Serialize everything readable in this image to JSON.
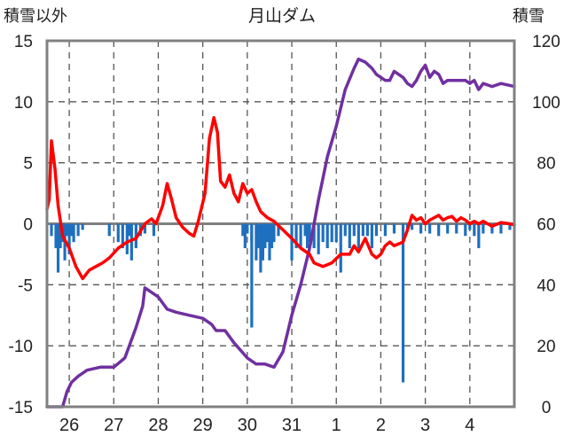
{
  "chart_data": {
    "type": "line",
    "title": "月山ダム",
    "y_left_label": "積雪以外",
    "y_right_label": "積雪",
    "ylim_left": [
      -15,
      15
    ],
    "yticks_left": [
      "15",
      "10",
      "5",
      "0",
      "-5",
      "-10",
      "-15"
    ],
    "ylim_right": [
      0,
      120
    ],
    "yticks_right": [
      "120",
      "100",
      "80",
      "60",
      "40",
      "20",
      "0"
    ],
    "x_categories": [
      "26",
      "27",
      "28",
      "29",
      "30",
      "31",
      "1",
      "2",
      "3",
      "4"
    ],
    "xlim_days": [
      0,
      10.5
    ],
    "grid": true,
    "colors": {
      "temperature": "#ff0000",
      "snow_depth": "#7030a0",
      "precipitation": "#1f6fbf",
      "axis": "#808080",
      "grid": "#555555"
    },
    "series": [
      {
        "axis": "left",
        "style": "line",
        "values_xy": [
          [
            0.0,
            1.2
          ],
          [
            0.05,
            2.0
          ],
          [
            0.1,
            6.8
          ],
          [
            0.18,
            4.5
          ],
          [
            0.25,
            1.5
          ],
          [
            0.35,
            -1.0
          ],
          [
            0.5,
            -2.0
          ],
          [
            0.65,
            -3.5
          ],
          [
            0.8,
            -4.5
          ],
          [
            0.95,
            -3.8
          ],
          [
            1.1,
            -3.5
          ],
          [
            1.25,
            -3.2
          ],
          [
            1.4,
            -2.8
          ],
          [
            1.6,
            -2.0
          ],
          [
            1.8,
            -1.5
          ],
          [
            2.0,
            -1.2
          ],
          [
            2.2,
            0.0
          ],
          [
            2.35,
            0.4
          ],
          [
            2.45,
            0.0
          ],
          [
            2.6,
            1.5
          ],
          [
            2.7,
            3.3
          ],
          [
            2.8,
            2.0
          ],
          [
            2.9,
            0.5
          ],
          [
            3.05,
            -0.3
          ],
          [
            3.2,
            -0.8
          ],
          [
            3.3,
            -1.0
          ],
          [
            3.4,
            0.2
          ],
          [
            3.55,
            2.5
          ],
          [
            3.65,
            7.0
          ],
          [
            3.75,
            8.7
          ],
          [
            3.83,
            7.5
          ],
          [
            3.9,
            3.5
          ],
          [
            4.0,
            3.0
          ],
          [
            4.1,
            4.0
          ],
          [
            4.2,
            2.5
          ],
          [
            4.3,
            1.8
          ],
          [
            4.4,
            3.3
          ],
          [
            4.5,
            2.5
          ],
          [
            4.6,
            2.8
          ],
          [
            4.7,
            1.8
          ],
          [
            4.8,
            1.0
          ],
          [
            4.95,
            0.5
          ],
          [
            5.1,
            0.2
          ],
          [
            5.3,
            -0.5
          ],
          [
            5.5,
            -1.2
          ],
          [
            5.7,
            -2.0
          ],
          [
            5.9,
            -2.5
          ],
          [
            6.0,
            -3.2
          ],
          [
            6.2,
            -3.5
          ],
          [
            6.4,
            -3.2
          ],
          [
            6.6,
            -2.5
          ],
          [
            6.8,
            -2.5
          ],
          [
            6.9,
            -1.8
          ],
          [
            7.0,
            -2.3
          ],
          [
            7.15,
            -1.2
          ],
          [
            7.3,
            -2.5
          ],
          [
            7.4,
            -2.8
          ],
          [
            7.5,
            -2.5
          ],
          [
            7.6,
            -1.8
          ],
          [
            7.7,
            -1.5
          ],
          [
            7.8,
            -1.8
          ],
          [
            8.0,
            -1.5
          ],
          [
            8.1,
            -0.5
          ],
          [
            8.2,
            0.7
          ],
          [
            8.3,
            0.3
          ],
          [
            8.4,
            0.5
          ],
          [
            8.5,
            0.0
          ],
          [
            8.6,
            0.3
          ],
          [
            8.7,
            0.5
          ],
          [
            8.8,
            0.7
          ],
          [
            8.9,
            0.3
          ],
          [
            9.0,
            0.5
          ],
          [
            9.1,
            0.6
          ],
          [
            9.2,
            0.2
          ],
          [
            9.3,
            0.5
          ],
          [
            9.4,
            0.3
          ],
          [
            9.5,
            0.0
          ],
          [
            9.6,
            0.2
          ],
          [
            9.7,
            0.0
          ],
          [
            9.8,
            0.2
          ],
          [
            10.0,
            -0.2
          ],
          [
            10.2,
            0.1
          ],
          [
            10.4,
            0.0
          ],
          [
            10.5,
            -0.1
          ]
        ]
      },
      {
        "axis": "right",
        "style": "line",
        "values_xy": [
          [
            0.0,
            0
          ],
          [
            0.35,
            0
          ],
          [
            0.45,
            5
          ],
          [
            0.55,
            8
          ],
          [
            0.7,
            10
          ],
          [
            0.9,
            12
          ],
          [
            1.2,
            13
          ],
          [
            1.5,
            13
          ],
          [
            1.75,
            16
          ],
          [
            2.0,
            26
          ],
          [
            2.15,
            33
          ],
          [
            2.2,
            39
          ],
          [
            2.3,
            38
          ],
          [
            2.5,
            36
          ],
          [
            2.7,
            32
          ],
          [
            2.9,
            31
          ],
          [
            3.2,
            30
          ],
          [
            3.5,
            29
          ],
          [
            3.7,
            27
          ],
          [
            3.8,
            25
          ],
          [
            4.0,
            25
          ],
          [
            4.2,
            21
          ],
          [
            4.5,
            16
          ],
          [
            4.7,
            14
          ],
          [
            4.9,
            14
          ],
          [
            5.1,
            13
          ],
          [
            5.3,
            18
          ],
          [
            5.5,
            30
          ],
          [
            5.7,
            40
          ],
          [
            5.9,
            52
          ],
          [
            6.1,
            68
          ],
          [
            6.3,
            82
          ],
          [
            6.5,
            92
          ],
          [
            6.7,
            104
          ],
          [
            6.9,
            111
          ],
          [
            7.0,
            114
          ],
          [
            7.15,
            113
          ],
          [
            7.3,
            111
          ],
          [
            7.4,
            109
          ],
          [
            7.5,
            108
          ],
          [
            7.6,
            107
          ],
          [
            7.7,
            107
          ],
          [
            7.8,
            110
          ],
          [
            7.9,
            109
          ],
          [
            8.0,
            108
          ],
          [
            8.1,
            106
          ],
          [
            8.2,
            105
          ],
          [
            8.3,
            107
          ],
          [
            8.4,
            110
          ],
          [
            8.5,
            112
          ],
          [
            8.6,
            108
          ],
          [
            8.7,
            110
          ],
          [
            8.8,
            109
          ],
          [
            8.9,
            106
          ],
          [
            9.0,
            107
          ],
          [
            9.1,
            107
          ],
          [
            9.2,
            107
          ],
          [
            9.4,
            107
          ],
          [
            9.5,
            106
          ],
          [
            9.6,
            107
          ],
          [
            9.7,
            104
          ],
          [
            9.8,
            106
          ],
          [
            10.0,
            105
          ],
          [
            10.2,
            106
          ],
          [
            10.5,
            105
          ]
        ]
      },
      {
        "axis": "left",
        "style": "bar",
        "values_xy": [
          [
            0.1,
            -1.0
          ],
          [
            0.2,
            -2.0
          ],
          [
            0.25,
            -4.0
          ],
          [
            0.3,
            -2.0
          ],
          [
            0.35,
            -1.5
          ],
          [
            0.4,
            -3.0
          ],
          [
            0.45,
            -1.0
          ],
          [
            0.5,
            -2.5
          ],
          [
            0.55,
            -1.0
          ],
          [
            0.6,
            -1.5
          ],
          [
            0.7,
            -1.0
          ],
          [
            0.8,
            -0.5
          ],
          [
            1.4,
            -1.0
          ],
          [
            1.6,
            -1.5
          ],
          [
            1.7,
            -2.0
          ],
          [
            1.8,
            -2.5
          ],
          [
            1.85,
            -1.0
          ],
          [
            1.9,
            -3.0
          ],
          [
            2.0,
            -2.0
          ],
          [
            2.1,
            -1.0
          ],
          [
            2.2,
            -0.8
          ],
          [
            2.4,
            -1.0
          ],
          [
            4.4,
            -1.0
          ],
          [
            4.45,
            -2.0
          ],
          [
            4.5,
            -0.8
          ],
          [
            4.6,
            -1.5
          ],
          [
            4.7,
            -3.0
          ],
          [
            4.75,
            -2.0
          ],
          [
            4.8,
            -4.0
          ],
          [
            4.85,
            -3.0
          ],
          [
            4.9,
            -2.0
          ],
          [
            4.95,
            -1.5
          ],
          [
            5.0,
            -3.0
          ],
          [
            5.05,
            -2.0
          ],
          [
            5.1,
            -1.5
          ],
          [
            5.2,
            -1.0
          ],
          [
            4.6,
            -8.5
          ],
          [
            5.5,
            -3.0
          ],
          [
            5.6,
            -2.0
          ],
          [
            5.7,
            -2.0
          ],
          [
            5.8,
            -1.0
          ],
          [
            5.85,
            -2.0
          ],
          [
            5.9,
            -1.5
          ],
          [
            6.0,
            -2.0
          ],
          [
            6.1,
            -2.5
          ],
          [
            6.2,
            -1.5
          ],
          [
            6.3,
            -2.0
          ],
          [
            6.4,
            -1.5
          ],
          [
            6.5,
            -1.5
          ],
          [
            6.6,
            -4.0
          ],
          [
            6.7,
            -1.0
          ],
          [
            6.8,
            -2.0
          ],
          [
            6.9,
            -1.0
          ],
          [
            7.0,
            -2.0
          ],
          [
            7.1,
            -1.0
          ],
          [
            7.2,
            -1.0
          ],
          [
            7.3,
            -2.0
          ],
          [
            7.4,
            -1.0
          ],
          [
            7.6,
            -1.0
          ],
          [
            7.8,
            -0.8
          ],
          [
            8.0,
            -13.0
          ],
          [
            8.1,
            -0.5
          ],
          [
            8.2,
            -0.5
          ],
          [
            8.4,
            -0.8
          ],
          [
            8.6,
            -0.8
          ],
          [
            8.8,
            -1.0
          ],
          [
            9.0,
            -0.8
          ],
          [
            9.2,
            -0.8
          ],
          [
            9.4,
            -1.0
          ],
          [
            9.5,
            -0.5
          ],
          [
            9.6,
            -1.0
          ],
          [
            9.7,
            -2.0
          ],
          [
            9.8,
            -0.8
          ],
          [
            10.0,
            -0.8
          ],
          [
            10.2,
            -0.8
          ],
          [
            10.4,
            -0.5
          ]
        ]
      }
    ]
  }
}
